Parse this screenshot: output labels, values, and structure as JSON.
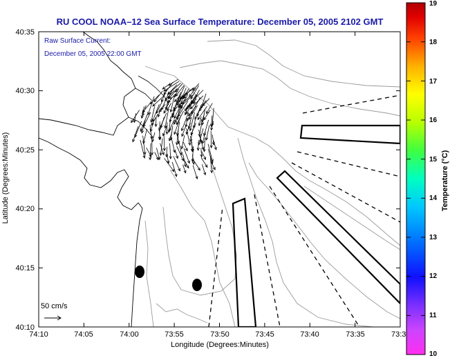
{
  "title": "RU COOL   NOAA–12  Sea Surface Temperature:  December 05, 2005 2102 GMT",
  "legend": {
    "line1": "Raw Surface Current:",
    "line2": "December 05, 2005 22:00 GMT"
  },
  "scale": {
    "label": "50 cm/s"
  },
  "axes": {
    "xlabel": "Longitude (Degrees:Minutes)",
    "ylabel": "Latitude (Degrees:Minutes)",
    "xticks": [
      "74:10",
      "74:05",
      "74:00",
      "73:55",
      "73:50",
      "73:45",
      "73:40",
      "73:35",
      "73:3"
    ],
    "yticks": [
      "40:35",
      "40:30",
      "40:25",
      "40:20",
      "40:15",
      "40:10"
    ]
  },
  "colorbar": {
    "title": "Temperature (°C)",
    "ticks": [
      "19",
      "18",
      "17",
      "16",
      "15",
      "14",
      "13",
      "12",
      "11",
      "10"
    ],
    "range": [
      10,
      19
    ]
  },
  "markers": {
    "count": 2
  },
  "colors": {
    "title": "#1a1aa8",
    "frame": "#000000",
    "contour": "#9a9a9a"
  }
}
